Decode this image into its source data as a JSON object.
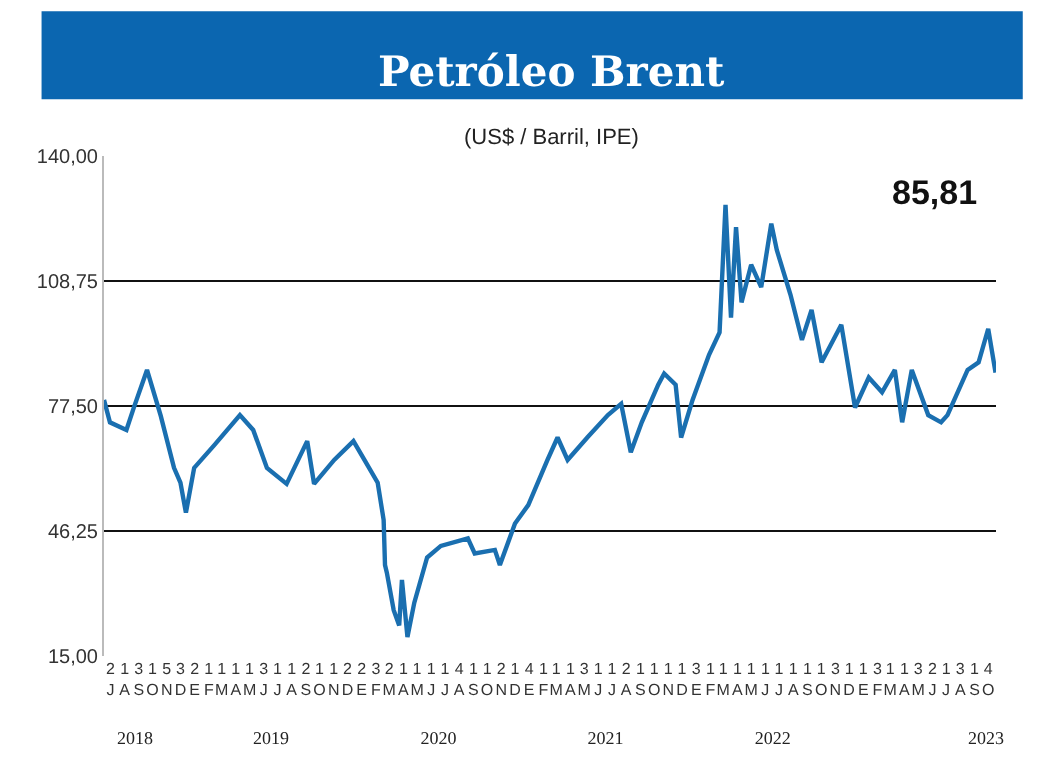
{
  "chart_data": {
    "type": "line",
    "title": "Petróleo Brent",
    "subtitle": "(US$ / Barril, IPE)",
    "annotations": [
      "85,81"
    ],
    "x": [
      "2018-07-01",
      "2018-07-14",
      "2018-08-19",
      "2018-09-04",
      "2018-10-03",
      "2018-11-02",
      "2018-12-01",
      "2018-12-15",
      "2018-12-27",
      "2019-01-14",
      "2019-02-27",
      "2019-04-24",
      "2019-05-23",
      "2019-06-22",
      "2019-08-04",
      "2019-09-18",
      "2019-10-03",
      "2019-11-16",
      "2019-12-28",
      "2020-01-21",
      "2020-02-19",
      "2020-03-03",
      "2020-03-06",
      "2020-03-10",
      "2020-03-25",
      "2020-04-06",
      "2020-04-12",
      "2020-04-24",
      "2020-05-09",
      "2020-06-06",
      "2020-07-06",
      "2020-09-03",
      "2020-09-18",
      "2020-11-01",
      "2020-11-12",
      "2020-12-15",
      "2021-01-13",
      "2021-02-24",
      "2021-03-18",
      "2021-04-09",
      "2021-05-22",
      "2021-07-06",
      "2021-08-04",
      "2021-08-25",
      "2021-09-18",
      "2021-10-24",
      "2021-11-06",
      "2021-12-01",
      "2021-12-13",
      "2022-01-07",
      "2022-02-12",
      "2022-03-07",
      "2022-03-20",
      "2022-04-01",
      "2022-04-12",
      "2022-04-24",
      "2022-05-15",
      "2022-06-06",
      "2022-06-28",
      "2022-07-10",
      "2022-08-09",
      "2022-09-03",
      "2022-09-24",
      "2022-10-16",
      "2022-11-28",
      "2022-12-28",
      "2023-01-27",
      "2023-02-25",
      "2023-03-25",
      "2023-04-10",
      "2023-05-01",
      "2023-06-06",
      "2023-07-04",
      "2023-07-18",
      "2023-08-31",
      "2023-09-24",
      "2023-10-15",
      "2023-10-31"
    ],
    "series": [
      {
        "color": "#1a6fb0",
        "values": [
          79.0,
          73.4,
          71.5,
          77.0,
          86.5,
          75.0,
          62.0,
          58.3,
          50.8,
          62.0,
          67.7,
          75.2,
          71.5,
          62.0,
          58.0,
          68.7,
          58.0,
          64.0,
          68.7,
          64.0,
          58.3,
          49.0,
          37.7,
          35.8,
          26.4,
          22.6,
          34.0,
          19.7,
          28.3,
          39.6,
          42.5,
          44.4,
          40.6,
          41.5,
          37.7,
          48.1,
          52.7,
          64.0,
          69.6,
          64.0,
          69.6,
          75.2,
          78.0,
          65.9,
          73.4,
          82.8,
          85.6,
          82.8,
          69.6,
          79.0,
          90.3,
          95.9,
          127.8,
          99.6,
          122.2,
          103.4,
          112.8,
          107.2,
          123.1,
          116.5,
          105.3,
          94.0,
          101.5,
          88.4,
          97.8,
          77.1,
          84.6,
          80.9,
          86.5,
          73.4,
          86.5,
          75.2,
          73.4,
          75.2,
          86.5,
          88.4,
          96.8,
          85.81
        ]
      }
    ],
    "xlim": [
      "2018-07-01",
      "2023-11-01"
    ],
    "xticks": [
      {
        "value": "2018-07-15",
        "label": "2\nJ"
      },
      {
        "value": "2018-08-15",
        "label": "1\nA"
      },
      {
        "value": "2018-09-15",
        "label": "3\nS"
      },
      {
        "value": "2018-10-15",
        "label": "1\nO"
      },
      {
        "value": "2018-11-15",
        "label": "5\nN"
      },
      {
        "value": "2018-12-15",
        "label": "3\nD"
      },
      {
        "value": "2019-01-15",
        "label": "2\nE"
      },
      {
        "value": "2019-02-15",
        "label": "1\nF"
      },
      {
        "value": "2019-03-15",
        "label": "1\nM"
      },
      {
        "value": "2019-04-15",
        "label": "1\nA"
      },
      {
        "value": "2019-05-15",
        "label": "1\nM"
      },
      {
        "value": "2019-06-15",
        "label": "3\nJ"
      },
      {
        "value": "2019-07-15",
        "label": "1\nJ"
      },
      {
        "value": "2019-08-15",
        "label": "1\nA"
      },
      {
        "value": "2019-09-15",
        "label": "2\nS"
      },
      {
        "value": "2019-10-15",
        "label": "1\nO"
      },
      {
        "value": "2019-11-15",
        "label": "1\nN"
      },
      {
        "value": "2019-12-15",
        "label": "2\nD"
      },
      {
        "value": "2020-01-15",
        "label": "2\nE"
      },
      {
        "value": "2020-02-15",
        "label": "3\nF"
      },
      {
        "value": "2020-03-15",
        "label": "2\nM"
      },
      {
        "value": "2020-04-15",
        "label": "1\nA"
      },
      {
        "value": "2020-05-15",
        "label": "1\nM"
      },
      {
        "value": "2020-06-15",
        "label": "1\nJ"
      },
      {
        "value": "2020-07-15",
        "label": "1\nJ"
      },
      {
        "value": "2020-08-15",
        "label": "4\nA"
      },
      {
        "value": "2020-09-15",
        "label": "1\nS"
      },
      {
        "value": "2020-10-15",
        "label": "1\nO"
      },
      {
        "value": "2020-11-15",
        "label": "2\nN"
      },
      {
        "value": "2020-12-15",
        "label": "1\nD"
      },
      {
        "value": "2021-01-15",
        "label": "4\nE"
      },
      {
        "value": "2021-02-15",
        "label": "1\nF"
      },
      {
        "value": "2021-03-15",
        "label": "1\nM"
      },
      {
        "value": "2021-04-15",
        "label": "1\nA"
      },
      {
        "value": "2021-05-15",
        "label": "3\nM"
      },
      {
        "value": "2021-06-15",
        "label": "1\nJ"
      },
      {
        "value": "2021-07-15",
        "label": "1\nJ"
      },
      {
        "value": "2021-08-15",
        "label": "2\nA"
      },
      {
        "value": "2021-09-15",
        "label": "1\nS"
      },
      {
        "value": "2021-10-15",
        "label": "1\nO"
      },
      {
        "value": "2021-11-15",
        "label": "1\nN"
      },
      {
        "value": "2021-12-15",
        "label": "1\nD"
      },
      {
        "value": "2022-01-15",
        "label": "3\nE"
      },
      {
        "value": "2022-02-15",
        "label": "1\nF"
      },
      {
        "value": "2022-03-15",
        "label": "1\nM"
      },
      {
        "value": "2022-04-15",
        "label": "1\nA"
      },
      {
        "value": "2022-05-15",
        "label": "1\nM"
      },
      {
        "value": "2022-06-15",
        "label": "1\nJ"
      },
      {
        "value": "2022-07-15",
        "label": "1\nJ"
      },
      {
        "value": "2022-08-15",
        "label": "1\nA"
      },
      {
        "value": "2022-09-15",
        "label": "1\nS"
      },
      {
        "value": "2022-10-15",
        "label": "1\nO"
      },
      {
        "value": "2022-11-15",
        "label": "3\nN"
      },
      {
        "value": "2022-12-15",
        "label": "1\nD"
      },
      {
        "value": "2023-01-15",
        "label": "1\nE"
      },
      {
        "value": "2023-02-15",
        "label": "3\nF"
      },
      {
        "value": "2023-03-15",
        "label": "1\nM"
      },
      {
        "value": "2023-04-15",
        "label": "1\nA"
      },
      {
        "value": "2023-05-15",
        "label": "3\nM"
      },
      {
        "value": "2023-06-15",
        "label": "2\nJ"
      },
      {
        "value": "2023-07-15",
        "label": "1\nJ"
      },
      {
        "value": "2023-08-15",
        "label": "3\nA"
      },
      {
        "value": "2023-09-15",
        "label": "1\nS"
      },
      {
        "value": "2023-10-15",
        "label": "4\nO"
      }
    ],
    "x2lim": [
      "2018-07-01",
      "2023-11-01"
    ],
    "x2ticks": [
      {
        "value": "2018-09-07",
        "label": "2018"
      },
      {
        "value": "2019-07-01",
        "label": "2019"
      },
      {
        "value": "2020-07-01",
        "label": "2020"
      },
      {
        "value": "2021-07-01",
        "label": "2021"
      },
      {
        "value": "2022-07-01",
        "label": "2022"
      },
      {
        "value": "2023-10-10",
        "label": "2023"
      }
    ],
    "ylim": [
      15,
      140
    ],
    "yticks": [
      {
        "value": 15,
        "label": "15,00"
      },
      {
        "value": 46.25,
        "label": "46,25"
      },
      {
        "value": 77.5,
        "label": "77,50"
      },
      {
        "value": 108.75,
        "label": "108,75"
      },
      {
        "value": 140,
        "label": "140,00"
      }
    ],
    "grid": "y",
    "marker": "none",
    "line_style": "solid"
  }
}
